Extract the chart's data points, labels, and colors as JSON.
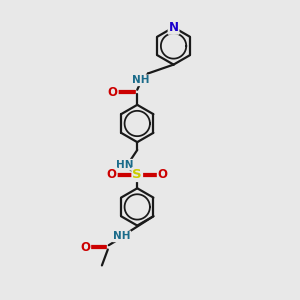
{
  "bg_color": "#e8e8e8",
  "bond_color": "#1a1a1a",
  "bond_width": 1.6,
  "atom_colors": {
    "N": "#1a6b8a",
    "N_py": "#1a00cc",
    "O": "#cc0000",
    "S": "#cccc00",
    "C": "#1a1a1a"
  },
  "font_size": 7.5,
  "fig_width": 3.0,
  "fig_height": 3.0,
  "dpi": 100,
  "xlim": [
    0,
    10
  ],
  "ylim": [
    0,
    15
  ]
}
